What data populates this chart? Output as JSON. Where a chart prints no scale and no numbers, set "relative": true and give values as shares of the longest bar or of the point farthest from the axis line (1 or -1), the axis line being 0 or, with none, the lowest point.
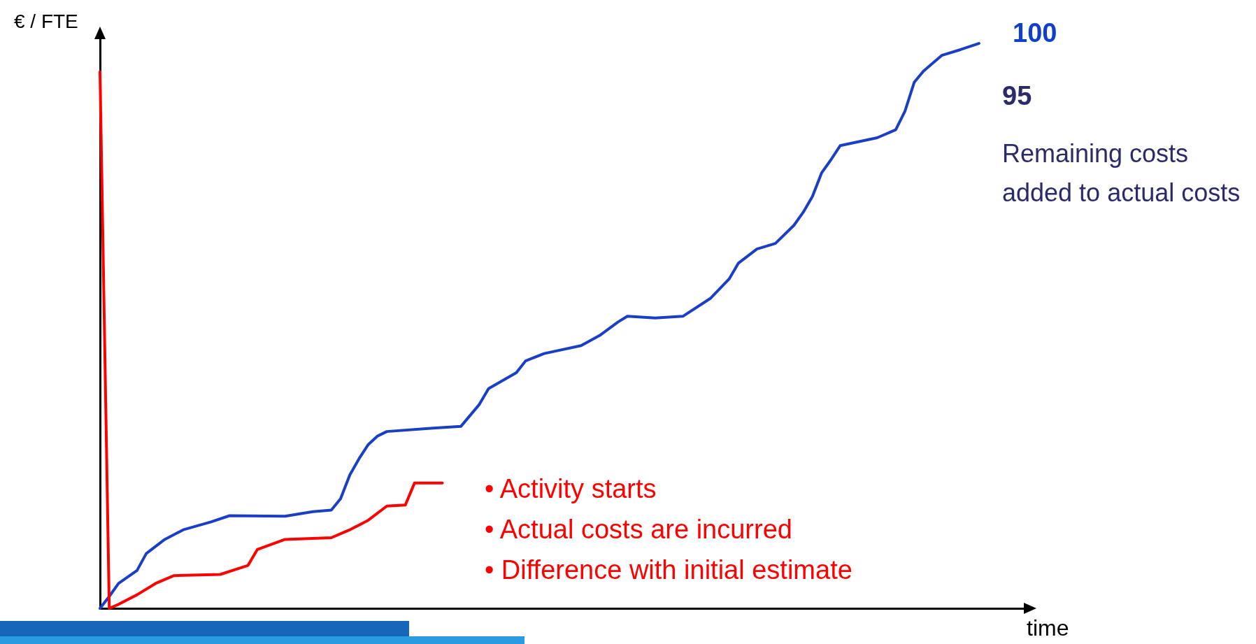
{
  "chart_data": {
    "type": "line",
    "relative": true,
    "xlabel": "time",
    "ylabel": "€ / FTE",
    "grid": false,
    "marker": "none",
    "annotations": [
      "100",
      "95",
      "Remaining costs added to actual costs",
      "• Activity starts",
      "• Actual costs are incurred",
      "• Difference with initial estimate"
    ],
    "categories": [
      null,
      null,
      null,
      null,
      null,
      null,
      null,
      null,
      null,
      null,
      null,
      null,
      null,
      null,
      null,
      null,
      null,
      null,
      null,
      null,
      null,
      null,
      null,
      null,
      null,
      null,
      null,
      null,
      null,
      null,
      null,
      null,
      null,
      null,
      null,
      null,
      null,
      null,
      null,
      null,
      null,
      null,
      null,
      null,
      null,
      null,
      null,
      null,
      null,
      null,
      null,
      null,
      null,
      null,
      null,
      null,
      null,
      null,
      null,
      null,
      null,
      null,
      null,
      null,
      null,
      null,
      null,
      null,
      null,
      null,
      null,
      null,
      null,
      null,
      null,
      null,
      null,
      null,
      null,
      null,
      null,
      null,
      null,
      null,
      null,
      null,
      null,
      null,
      null,
      null,
      null,
      null,
      null,
      null,
      null,
      null,
      null,
      null,
      null,
      null,
      null
    ],
    "series": [
      {
        "color": "#1a3fc4",
        "values": [
          0,
          0.021,
          0.044,
          null,
          0.067,
          0.097,
          null,
          0.122,
          null,
          0.139,
          null,
          null,
          0.153,
          null,
          0.164,
          null,
          null,
          null,
          null,
          null,
          0.163,
          null,
          null,
          0.171,
          null,
          0.174,
          0.194,
          0.236,
          0.265,
          0.29,
          0.305,
          0.313,
          null,
          null,
          null,
          null,
          0.319,
          null,
          null,
          0.322,
          null,
          0.361,
          0.389,
          null,
          null,
          0.417,
          0.438,
          null,
          0.451,
          null,
          null,
          null,
          0.465,
          null,
          0.483,
          null,
          0.507,
          0.517,
          null,
          null,
          0.514,
          null,
          null,
          0.517,
          null,
          null,
          0.549,
          null,
          0.583,
          0.611,
          null,
          0.636,
          null,
          0.646,
          null,
          0.678,
          0.701,
          0.729,
          0.771,
          0.794,
          0.819,
          null,
          null,
          null,
          0.833,
          null,
          0.847,
          0.88,
          0.931,
          0.951,
          null,
          0.979,
          null,
          0.989,
          null,
          1,
          null,
          null,
          null,
          null,
          null
        ]
      },
      {
        "color": "#ff0000",
        "values": [
          0.95,
          0,
          0.007,
          null,
          0.024,
          null,
          0.044,
          null,
          0.058,
          null,
          null,
          null,
          null,
          0.06,
          null,
          null,
          0.076,
          0.104,
          null,
          null,
          0.122,
          null,
          null,
          null,
          null,
          0.125,
          null,
          0.139,
          null,
          0.156,
          null,
          0.181,
          null,
          0.183,
          0.222,
          null,
          null,
          0.222,
          null,
          null,
          null,
          null,
          null,
          null,
          null,
          null,
          null,
          null,
          null,
          null,
          null,
          null,
          null,
          null,
          null,
          null,
          null,
          null,
          null,
          null,
          null,
          null,
          null,
          null,
          null,
          null,
          null,
          null,
          null,
          null,
          null,
          null,
          null,
          null,
          null,
          null,
          null,
          null,
          null,
          null,
          null,
          null,
          null,
          null,
          null,
          null,
          null,
          null,
          null,
          null,
          null,
          null,
          null,
          null,
          null,
          null,
          null,
          null,
          null,
          null,
          null
        ]
      }
    ]
  }
}
